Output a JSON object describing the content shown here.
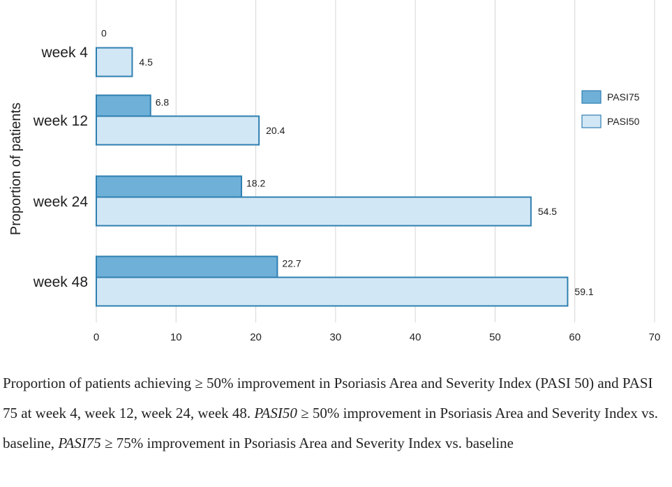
{
  "chart_data": {
    "type": "bar",
    "orientation": "horizontal",
    "title": "",
    "xlabel": "",
    "ylabel": "Proportion of patients",
    "xlim": [
      0,
      70
    ],
    "xticks": [
      0,
      10,
      20,
      30,
      40,
      50,
      60,
      70
    ],
    "grid": true,
    "legend_position": "right",
    "categories": [
      "week  4",
      "week 12",
      "week 24",
      "week 48"
    ],
    "series": [
      {
        "name": "PASI75",
        "color": "#6fb0d8",
        "values": [
          0,
          6.8,
          18.2,
          22.7
        ],
        "labels": [
          "0",
          "6.8",
          "18.2",
          "22.7"
        ]
      },
      {
        "name": "PASI50",
        "color": "#d2e7f5",
        "values": [
          4.5,
          20.4,
          54.5,
          59.1
        ],
        "labels": [
          "4.5",
          "20.4",
          "54.5",
          "59.1"
        ]
      }
    ],
    "bar_border_color": "#2e7fb0"
  },
  "caption": {
    "part1": "Proportion of patients achieving ≥ 50% improvement in Psoriasis Area and Severity Index (PASI 50) and PASI 75 at week 4, week 12, week 24, week 48. ",
    "term1": "PASI50",
    "part2": " ≥ 50% improvement in Psoriasis Area and Severity Index vs. baseline, ",
    "term2": "PASI75",
    "part3": " ≥ 75% improvement in Psoriasis Area and Severity Index vs. baseline"
  }
}
